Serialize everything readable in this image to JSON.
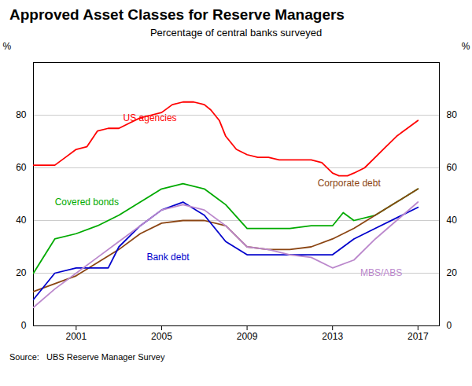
{
  "chart_data": {
    "type": "line",
    "title": "Approved Asset Classes for Reserve Managers",
    "subtitle": "Percentage of central banks surveyed",
    "source": "Source:   UBS Reserve Manager Survey",
    "ylabel": "%",
    "y2label": "%",
    "xlim": [
      1999,
      2018
    ],
    "xticks": [
      2001,
      2005,
      2009,
      2013,
      2017
    ],
    "ylim": [
      0,
      100
    ],
    "yticks": [
      0,
      20,
      40,
      60,
      80
    ],
    "y2lim": [
      0,
      100
    ],
    "y2ticks": [
      0,
      20,
      40,
      60,
      80
    ],
    "grid": true,
    "series": [
      {
        "name": "US agencies",
        "color": "#ff0000",
        "x": [
          1999,
          1999.5,
          2000,
          2000.5,
          2001,
          2001.5,
          2002,
          2002.5,
          2003,
          2003.5,
          2004,
          2004.5,
          2005,
          2005.5,
          2006,
          2006.5,
          2007,
          2007.3,
          2007.7,
          2008,
          2008.5,
          2009,
          2009.5,
          2010,
          2010.5,
          2011,
          2011.5,
          2012,
          2012.5,
          2013,
          2013.3,
          2013.7,
          2014,
          2014.5,
          2015,
          2015.5,
          2016,
          2016.5,
          2017
        ],
        "values": [
          61,
          61,
          61,
          64,
          67,
          68,
          74,
          75,
          75,
          77,
          79,
          80,
          81,
          84,
          85,
          85,
          84,
          82,
          78,
          72,
          67,
          65,
          64,
          64,
          63,
          63,
          63,
          63,
          62,
          58,
          57,
          57,
          58,
          60,
          64,
          68,
          72,
          75,
          78
        ]
      },
      {
        "name": "Covered bonds",
        "color": "#00aa00",
        "x": [
          1999,
          2000,
          2001,
          2002,
          2003,
          2004,
          2005,
          2006,
          2007,
          2008,
          2009,
          2010,
          2011,
          2012,
          2013,
          2013.5,
          2014,
          2015,
          2016,
          2017
        ],
        "values": [
          20,
          33,
          35,
          38,
          42,
          47,
          52,
          54,
          52,
          46,
          37,
          37,
          37,
          38,
          38,
          43,
          40,
          42,
          47,
          52
        ]
      },
      {
        "name": "Corporate debt",
        "color": "#8B4513",
        "x": [
          1999,
          2000,
          2001,
          2002,
          2003,
          2004,
          2005,
          2006,
          2007,
          2008,
          2009,
          2010,
          2011,
          2012,
          2013,
          2014,
          2015,
          2016,
          2017
        ],
        "values": [
          13,
          16,
          19,
          24,
          29,
          35,
          39,
          40,
          40,
          38,
          30,
          29,
          29,
          30,
          33,
          37,
          42,
          47,
          52
        ]
      },
      {
        "name": "Bank debt",
        "color": "#0000cc",
        "x": [
          1999,
          2000,
          2001,
          2002,
          2002.5,
          2003,
          2004,
          2005,
          2006,
          2007,
          2008,
          2009,
          2010,
          2011,
          2012,
          2013,
          2014,
          2015,
          2016,
          2017
        ],
        "values": [
          10,
          20,
          22,
          22,
          22,
          30,
          38,
          44,
          47,
          42,
          32,
          27,
          27,
          27,
          27,
          27,
          33,
          37,
          41,
          45
        ]
      },
      {
        "name": "MBS/ABS",
        "color": "#bb88cc",
        "x": [
          1999,
          2000,
          2001,
          2002,
          2003,
          2004,
          2005,
          2006,
          2007,
          2008,
          2009,
          2010,
          2011,
          2012,
          2013,
          2014,
          2015,
          2016,
          2017
        ],
        "values": [
          7,
          14,
          20,
          26,
          32,
          38,
          44,
          46,
          44,
          38,
          30,
          29,
          27,
          26,
          22,
          25,
          33,
          40,
          47
        ]
      }
    ],
    "annotations": [
      {
        "text": "US agencies",
        "x": 2003.2,
        "y": 79,
        "color": "#ff0000"
      },
      {
        "text": "Covered bonds",
        "x": 2000.0,
        "y": 47,
        "color": "#00aa00"
      },
      {
        "text": "Corporate debt",
        "x": 2012.3,
        "y": 54,
        "color": "#8B4513"
      },
      {
        "text": "Bank debt",
        "x": 2004.3,
        "y": 26,
        "color": "#0000cc"
      },
      {
        "text": "MBS/ABS",
        "x": 2014.3,
        "y": 20,
        "color": "#bb88cc"
      }
    ]
  }
}
